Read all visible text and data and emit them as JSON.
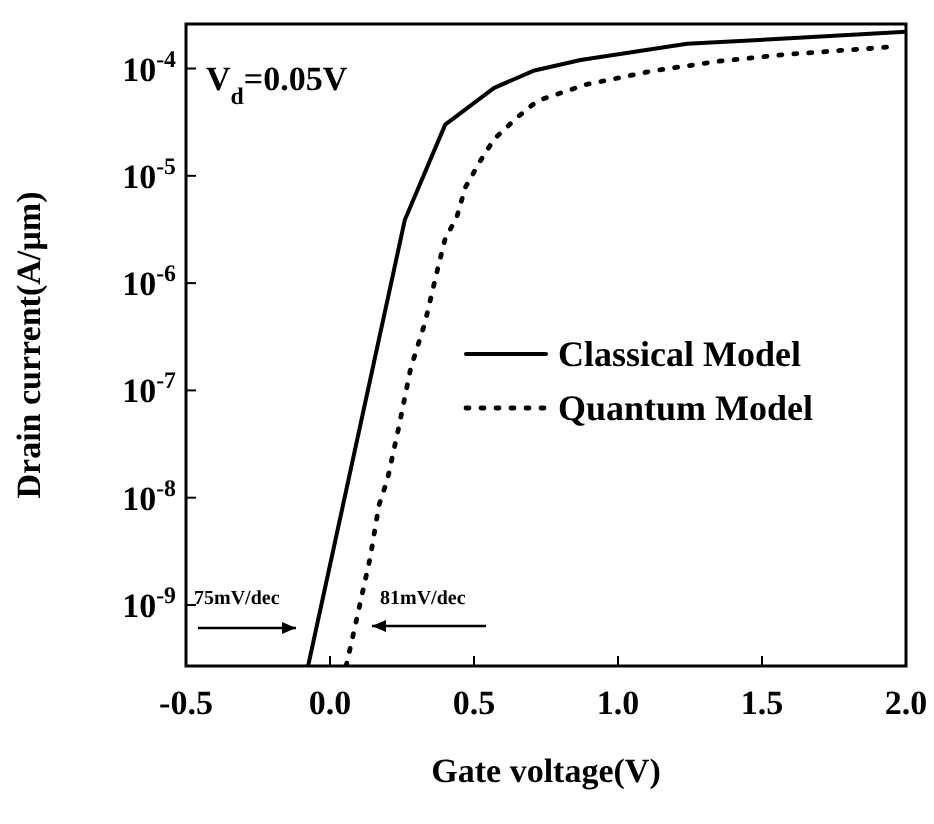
{
  "chart_data": {
    "type": "line",
    "xlabel": "Gate voltage(V)",
    "ylabel": "Drain current(A/µm)",
    "log": "y",
    "xlim": [
      -0.5,
      2.0
    ],
    "ylim": [
      2.7e-10,
      0.00026
    ],
    "xticks": [
      -0.5,
      {
        "value": 0,
        "label": "0.0"
      },
      0.5,
      {
        "value": 1,
        "label": "1.0"
      },
      1.5,
      {
        "value": 2,
        "label": "2.0"
      }
    ],
    "yticks": [
      {
        "value": 1e-09,
        "label": "10$^{-9}$"
      },
      {
        "value": 1e-08,
        "label": "10$^{-8}$"
      },
      {
        "value": 1e-07,
        "label": "10$^{-7}$"
      },
      {
        "value": 1e-06,
        "label": "10$^{-6}$"
      },
      {
        "value": 1e-05,
        "label": "10$^{-5}$"
      },
      {
        "value": 0.0001,
        "label": "10$^{-4}$"
      }
    ],
    "legend": "right",
    "grid": false,
    "annotations": [
      "V$_{d}$=0.05V",
      "75mV/dec",
      "81mV/dec"
    ],
    "series": [
      {
        "name": "Classical Model",
        "color": "#000000",
        "line_style": "solid",
        "x": [
          -0.076,
          0.26,
          0.4,
          0.57,
          0.71,
          0.87,
          1.24,
          1.58,
          2.0
        ],
        "values": [
          2.7e-10,
          3.9e-06,
          3e-05,
          6.6e-05,
          9.6e-05,
          0.00012,
          0.00017,
          0.00019,
          0.00022
        ]
      },
      {
        "name": "Quantum Model",
        "color": "#000000",
        "line_style": "dotted",
        "x": [
          0.056,
          0.08,
          0.14,
          0.17,
          0.2,
          0.24,
          0.28,
          0.33,
          0.375,
          0.4,
          0.44,
          0.47,
          0.52,
          0.57,
          0.65,
          0.72,
          0.89,
          1.12,
          1.35,
          1.58,
          1.96
        ],
        "values": [
          2.7e-10,
          5.2e-10,
          2.8e-09,
          8.5e-09,
          1.5e-08,
          4.7e-08,
          1.6e-07,
          4.3e-07,
          1.4e-06,
          2.6e-06,
          4.1e-06,
          7.8e-06,
          1.35e-05,
          2.2e-05,
          3.5e-05,
          5e-05,
          7.1e-05,
          9.5e-05,
          0.000117,
          0.000135,
          0.00016
        ]
      }
    ]
  }
}
